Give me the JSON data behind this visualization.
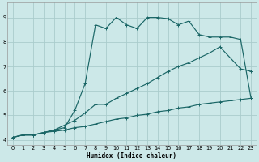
{
  "xlabel": "Humidex (Indice chaleur)",
  "bg_color": "#cce8e8",
  "grid_color": "#aacccc",
  "line_color": "#1a6666",
  "xlim": [
    -0.5,
    23.5
  ],
  "ylim": [
    3.8,
    9.6
  ],
  "xticks": [
    0,
    1,
    2,
    3,
    4,
    5,
    6,
    7,
    8,
    9,
    10,
    11,
    12,
    13,
    14,
    15,
    16,
    17,
    18,
    19,
    20,
    21,
    22,
    23
  ],
  "yticks": [
    4,
    5,
    6,
    7,
    8,
    9
  ],
  "curve1_x": [
    0,
    1,
    2,
    3,
    4,
    5,
    6,
    7,
    8,
    9,
    10,
    11,
    12,
    13,
    14,
    15,
    16,
    17,
    18,
    19,
    20,
    21,
    22,
    23
  ],
  "curve1_y": [
    4.1,
    4.2,
    4.2,
    4.3,
    4.35,
    4.4,
    4.5,
    4.55,
    4.65,
    4.75,
    4.85,
    4.9,
    5.0,
    5.05,
    5.15,
    5.2,
    5.3,
    5.35,
    5.45,
    5.5,
    5.55,
    5.6,
    5.65,
    5.7
  ],
  "curve2_x": [
    0,
    1,
    2,
    3,
    4,
    5,
    6,
    7,
    8,
    9,
    10,
    11,
    12,
    13,
    14,
    15,
    16,
    17,
    18,
    19,
    20,
    21,
    22,
    23
  ],
  "curve2_y": [
    4.1,
    4.2,
    4.2,
    4.3,
    4.4,
    4.5,
    5.2,
    6.3,
    8.7,
    8.55,
    9.0,
    8.7,
    8.55,
    9.0,
    9.0,
    8.95,
    8.7,
    8.85,
    8.3,
    8.2,
    8.2,
    8.2,
    8.1,
    5.7
  ],
  "curve3_x": [
    0,
    1,
    2,
    3,
    4,
    5,
    6,
    7,
    8,
    9,
    10,
    11,
    12,
    13,
    14,
    15,
    16,
    17,
    18,
    19,
    20,
    21,
    22,
    23
  ],
  "curve3_y": [
    4.1,
    4.2,
    4.2,
    4.3,
    4.4,
    4.6,
    4.8,
    5.1,
    5.45,
    5.45,
    5.7,
    5.9,
    6.1,
    6.3,
    6.55,
    6.8,
    7.0,
    7.15,
    7.35,
    7.55,
    7.8,
    7.35,
    6.9,
    6.8
  ]
}
